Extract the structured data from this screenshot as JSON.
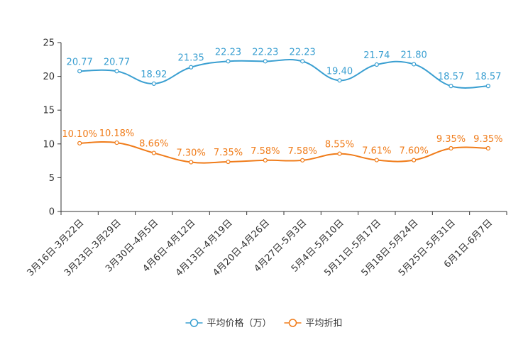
{
  "chart_data": {
    "type": "line",
    "title": "",
    "xlabel": "",
    "ylabel": "",
    "ylim": [
      0,
      25
    ],
    "yticks": [
      0,
      5,
      10,
      15,
      20,
      25
    ],
    "categories": [
      "3月16日-3月22日",
      "3月23日-3月29日",
      "3月30日-4月5日",
      "4月6日-4月12日",
      "4月13日-4月19日",
      "4月20日-4月26日",
      "4月27日-5月3日",
      "5月4日-5月10日",
      "5月11日-5月17日",
      "5月18日-5月24日",
      "5月25日-5月31日",
      "6月1日-6月7日"
    ],
    "series": [
      {
        "name": "平均价格（万）",
        "color": "#3a9fd1",
        "values": [
          20.77,
          20.77,
          18.92,
          21.35,
          22.23,
          22.23,
          22.23,
          19.4,
          21.74,
          21.8,
          18.57,
          18.57
        ],
        "labels": [
          "20.77",
          "20.77",
          "18.92",
          "21.35",
          "22.23",
          "22.23",
          "22.23",
          "19.40",
          "21.74",
          "21.80",
          "18.57",
          "18.57"
        ]
      },
      {
        "name": "平均折扣",
        "color": "#f07c1a",
        "values": [
          10.1,
          10.18,
          8.66,
          7.3,
          7.35,
          7.58,
          7.58,
          8.55,
          7.61,
          7.6,
          9.35,
          9.35
        ],
        "labels": [
          "10.10%",
          "10.18%",
          "8.66%",
          "7.30%",
          "7.35%",
          "7.58%",
          "7.58%",
          "8.55%",
          "7.61%",
          "7.60%",
          "9.35%",
          "9.35%"
        ]
      }
    ],
    "legend_position": "bottom-center"
  }
}
